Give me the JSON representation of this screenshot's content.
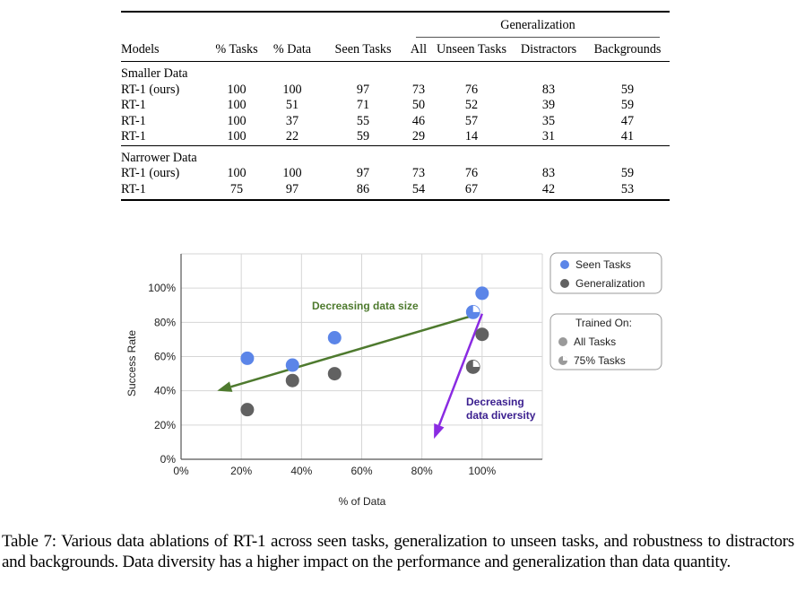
{
  "table": {
    "group_header": "Generalization",
    "columns": [
      "Models",
      "% Tasks",
      "% Data",
      "Seen Tasks",
      "All",
      "Unseen Tasks",
      "Distractors",
      "Backgrounds"
    ],
    "sections": [
      {
        "title": "Smaller Data",
        "rows": [
          [
            "RT-1 (ours)",
            "100",
            "100",
            "97",
            "73",
            "76",
            "83",
            "59"
          ],
          [
            "RT-1",
            "100",
            "51",
            "71",
            "50",
            "52",
            "39",
            "59"
          ],
          [
            "RT-1",
            "100",
            "37",
            "55",
            "46",
            "57",
            "35",
            "47"
          ],
          [
            "RT-1",
            "100",
            "22",
            "59",
            "29",
            "14",
            "31",
            "41"
          ]
        ]
      },
      {
        "title": "Narrower Data",
        "rows": [
          [
            "RT-1 (ours)",
            "100",
            "100",
            "97",
            "73",
            "76",
            "83",
            "59"
          ],
          [
            "RT-1",
            "75",
            "97",
            "86",
            "54",
            "67",
            "42",
            "53"
          ]
        ]
      }
    ]
  },
  "chart_data": {
    "type": "scatter",
    "title": "",
    "xlabel": "% of Data",
    "ylabel": "Success Rate",
    "xlim": [
      0,
      120
    ],
    "ylim": [
      0,
      120
    ],
    "x_ticks": [
      "0%",
      "20%",
      "40%",
      "60%",
      "80%",
      "100%"
    ],
    "y_ticks": [
      "0%",
      "20%",
      "40%",
      "60%",
      "80%",
      "100%"
    ],
    "grid": true,
    "colors": {
      "seen": "#5b85e8",
      "generalization": "#616161",
      "legend_trained": "#9a9a9a",
      "size_arrow": "#4e7a2e",
      "diversity_arrow": "#8a2be2",
      "diversity_text": "#3b1f8f"
    },
    "series": [
      {
        "name": "Seen Tasks",
        "points": [
          {
            "x": 100,
            "y": 97,
            "trained_on": "All Tasks"
          },
          {
            "x": 51,
            "y": 71,
            "trained_on": "All Tasks"
          },
          {
            "x": 37,
            "y": 55,
            "trained_on": "All Tasks"
          },
          {
            "x": 22,
            "y": 59,
            "trained_on": "All Tasks"
          },
          {
            "x": 97,
            "y": 86,
            "trained_on": "75% Tasks"
          }
        ]
      },
      {
        "name": "Generalization",
        "points": [
          {
            "x": 100,
            "y": 73,
            "trained_on": "All Tasks"
          },
          {
            "x": 51,
            "y": 50,
            "trained_on": "All Tasks"
          },
          {
            "x": 37,
            "y": 46,
            "trained_on": "All Tasks"
          },
          {
            "x": 22,
            "y": 29,
            "trained_on": "All Tasks"
          },
          {
            "x": 97,
            "y": 54,
            "trained_on": "75% Tasks"
          }
        ]
      }
    ],
    "annotations": [
      {
        "text": "Decreasing data size",
        "arrow_from": [
          99,
          85
        ],
        "arrow_to": [
          12,
          40
        ]
      },
      {
        "text_lines": [
          "Decreasing",
          "data diversity"
        ],
        "arrow_from": [
          100,
          85
        ],
        "arrow_to": [
          84,
          12
        ]
      }
    ],
    "legend": {
      "placement": "top-right",
      "series_items": [
        "Seen Tasks",
        "Generalization"
      ],
      "trained_on_title": "Trained On:",
      "trained_on_items": [
        "All Tasks",
        "75% Tasks"
      ]
    }
  },
  "caption": "Table 7: Various data ablations of RT-1 across seen tasks, generalization to unseen tasks, and robustness to distractors and backgrounds. Data diversity has a higher impact on the performance and generalization than data quantity."
}
